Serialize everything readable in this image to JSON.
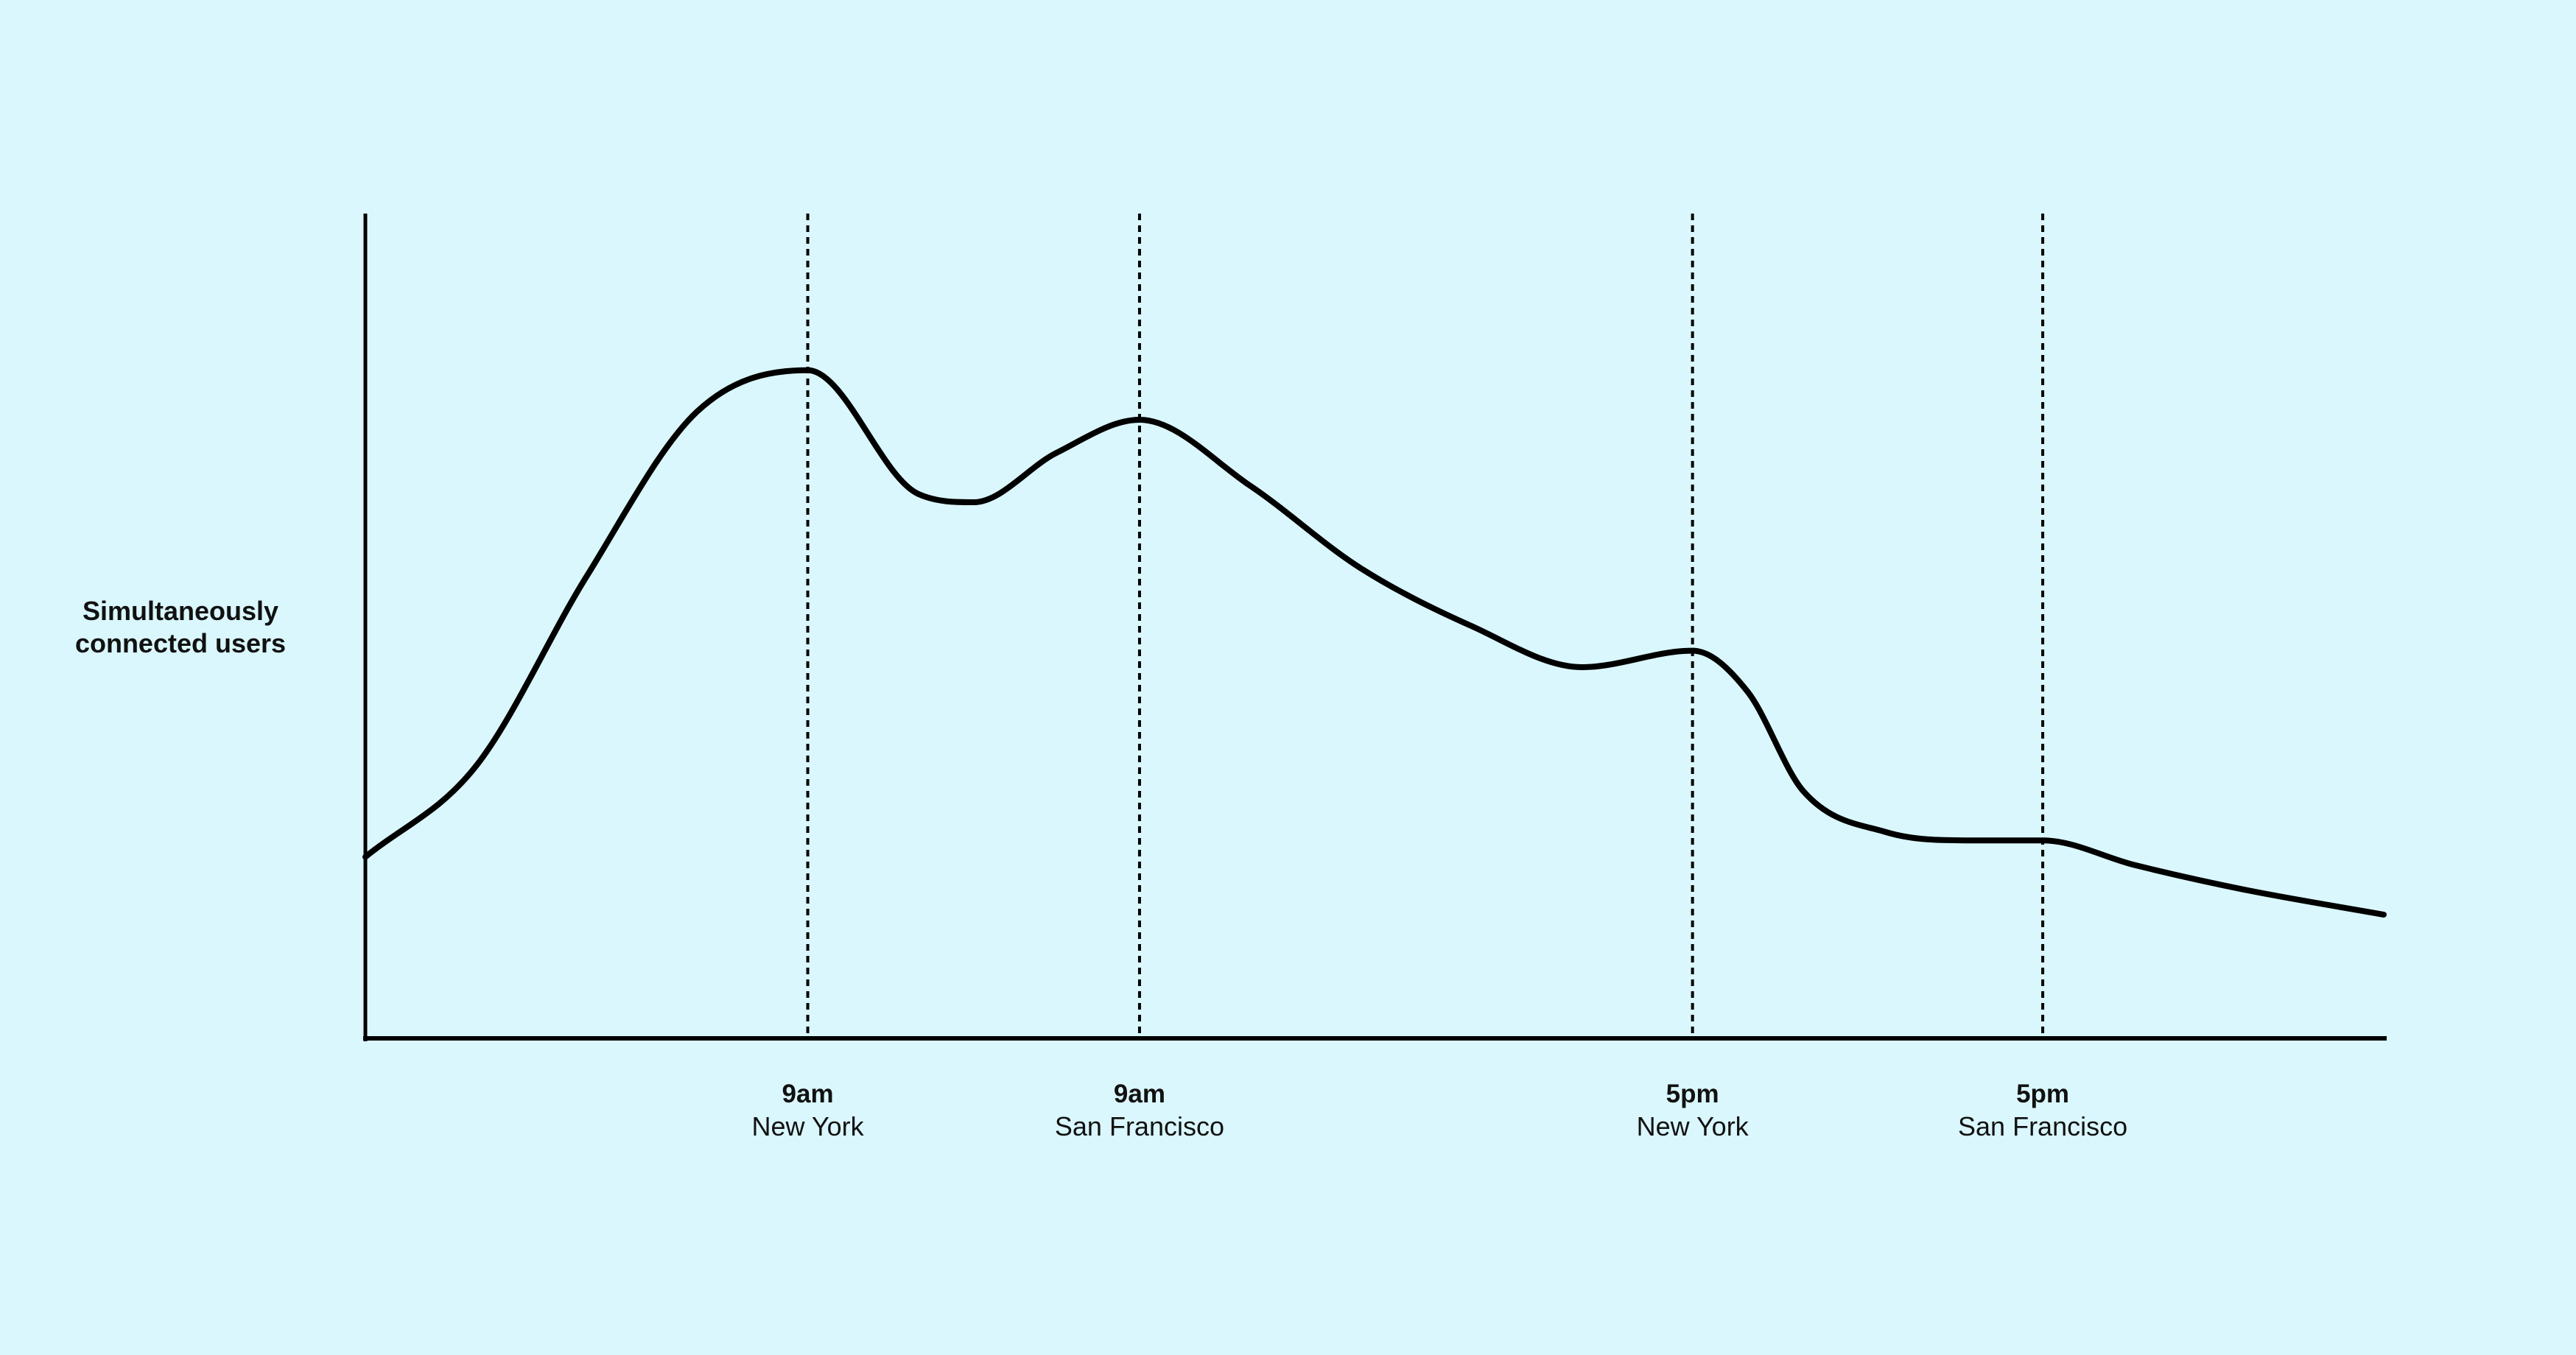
{
  "chart_data": {
    "type": "line",
    "ylabel": [
      "Simultaneously",
      "connected users"
    ],
    "xlabel": "",
    "title": "",
    "x_axis_type": "time",
    "xlim": [
      "05:00",
      "23:15"
    ],
    "ylim": [
      0,
      100
    ],
    "y_tick_labels": false,
    "grid": false,
    "legend": "none",
    "line_color": "#000000",
    "background": "#daf7fd",
    "reference_lines": [
      {
        "x": "09:00",
        "time": "9am",
        "city": "New York"
      },
      {
        "x": "12:00",
        "time": "9am",
        "city": "San Francisco"
      },
      {
        "x": "17:00",
        "time": "5pm",
        "city": "New York"
      },
      {
        "x": "20:10",
        "time": "5pm",
        "city": "San Francisco"
      }
    ],
    "series": [
      {
        "x": [
          "05:00",
          "06:00",
          "07:00",
          "08:00",
          "09:00",
          "10:00",
          "10:30",
          "11:15",
          "12:00",
          "13:00",
          "14:00",
          "15:00",
          "16:00",
          "17:00",
          "17:30",
          "18:00",
          "18:45",
          "19:30",
          "20:10",
          "21:00",
          "22:00",
          "23:15"
        ],
        "y": [
          22,
          33,
          56,
          76,
          81,
          66,
          65,
          71,
          75,
          67,
          57,
          50,
          45,
          47,
          42,
          30,
          25,
          24,
          24,
          21,
          18,
          15
        ]
      }
    ]
  }
}
